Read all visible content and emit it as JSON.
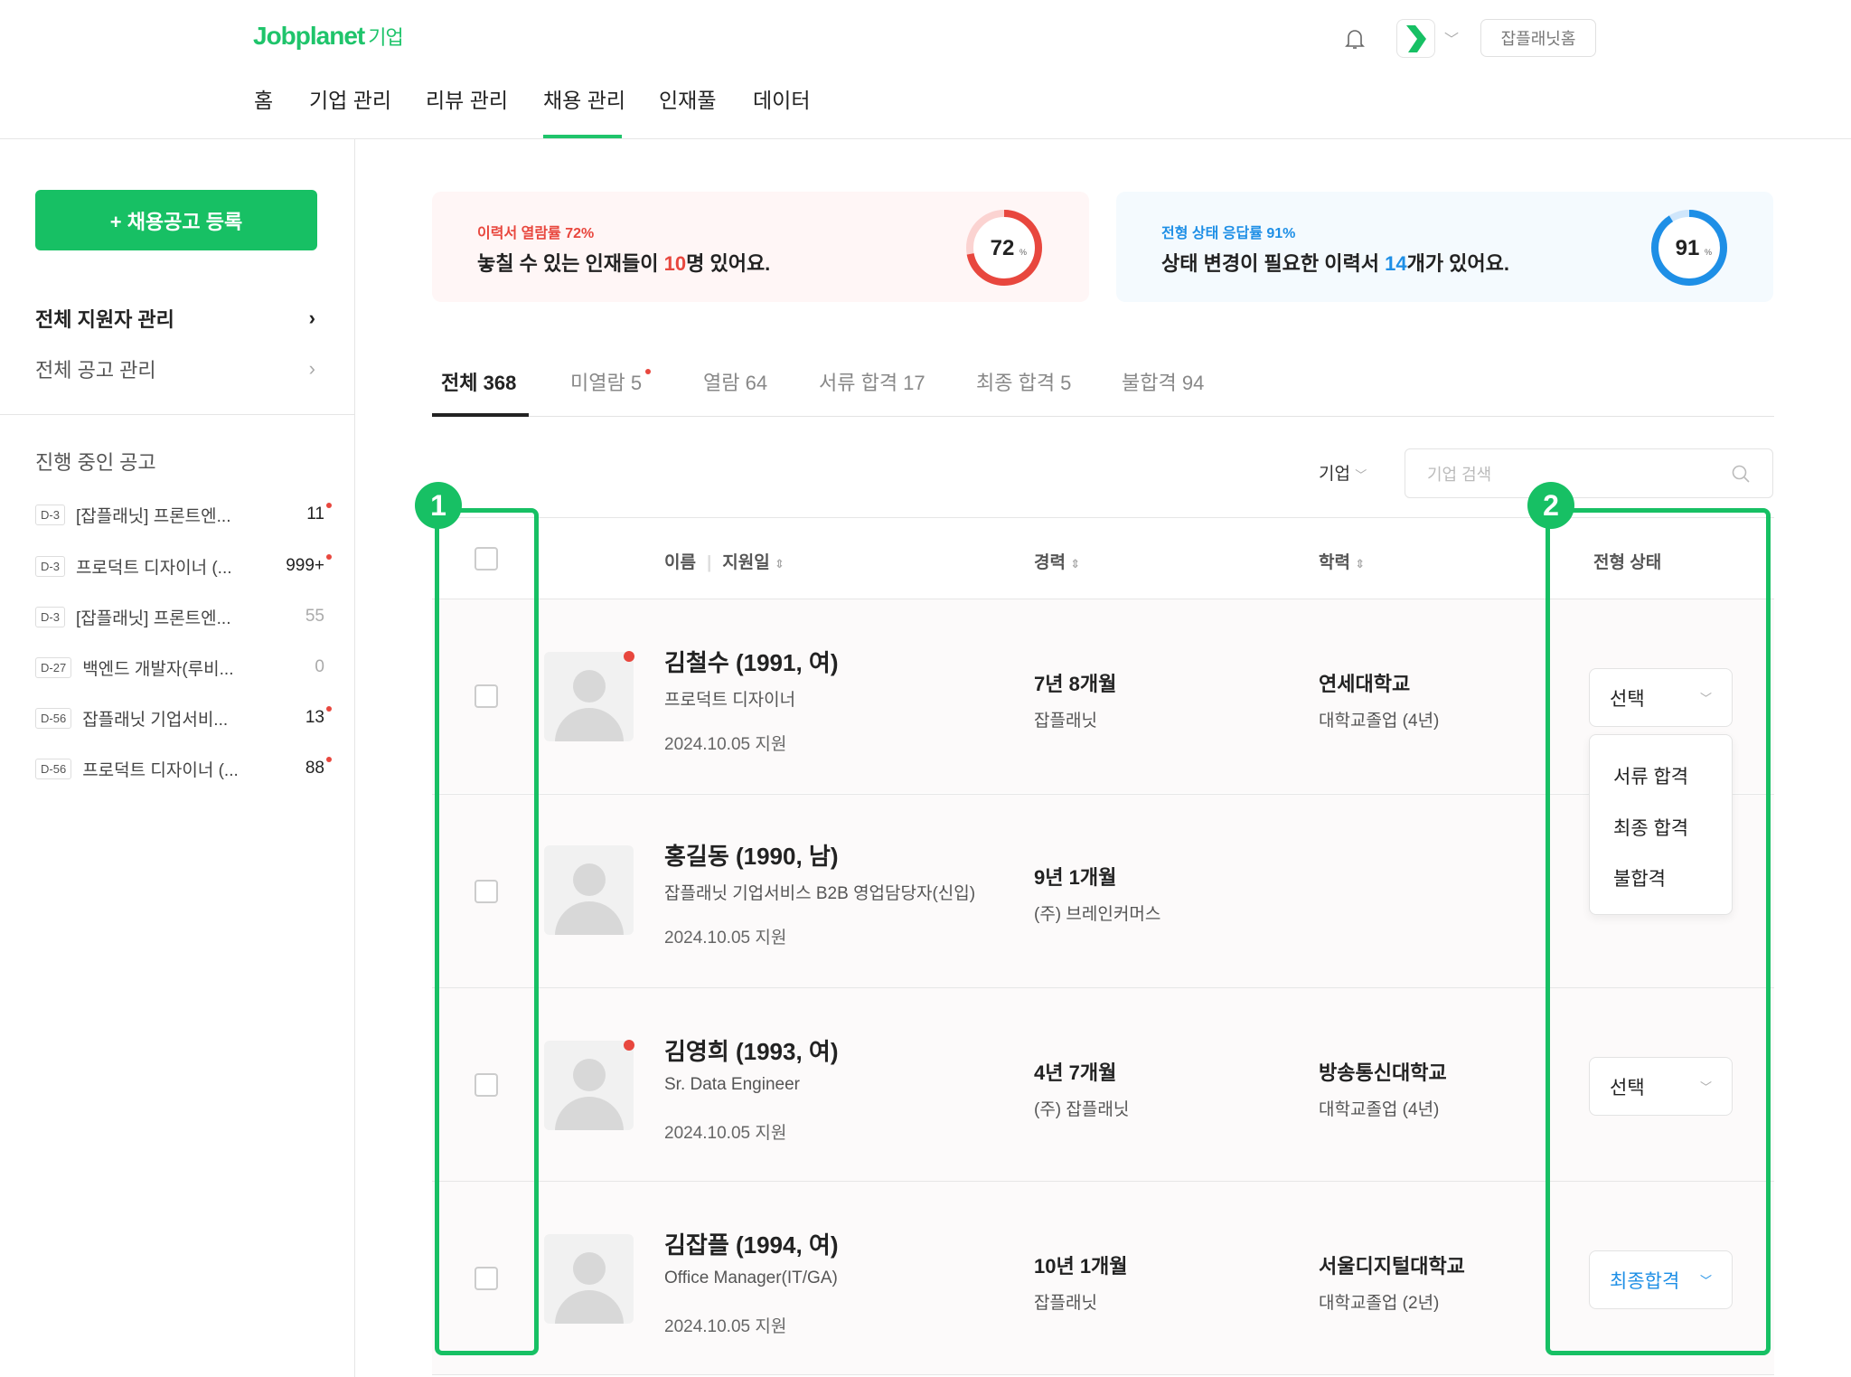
{
  "header": {
    "logo": "Jobplanet",
    "logo_suffix": "기업",
    "nav": [
      "홈",
      "기업 관리",
      "리뷰 관리",
      "채용 관리",
      "인재풀",
      "데이터"
    ],
    "active_nav": "채용 관리",
    "home_button": "잡플래닛홈",
    "brand_color": "#1fc46b"
  },
  "sidebar": {
    "new_post_button": "+ 채용공고 등록",
    "menu": [
      "전체 지원자 관리",
      "전체 공고 관리"
    ],
    "section_title": "진행 중인 공고",
    "jobs": [
      {
        "dday": "D-3",
        "title": "[잡플래닛] 프론트엔...",
        "count": "11",
        "new": true
      },
      {
        "dday": "D-3",
        "title": "프로덕트 디자이너 (...",
        "count": "999+",
        "new": true
      },
      {
        "dday": "D-3",
        "title": "[잡플래닛] 프론트엔...",
        "count": "55",
        "new": false
      },
      {
        "dday": "D-27",
        "title": "백엔드 개발자(루비...",
        "count": "0",
        "new": false
      },
      {
        "dday": "D-56",
        "title": "잡플래닛 기업서비...",
        "count": "13",
        "new": true
      },
      {
        "dday": "D-56",
        "title": "프로덕트 디자이너 (...",
        "count": "88",
        "new": true
      }
    ]
  },
  "cards": [
    {
      "kicker": "이력서 열람률 72%",
      "msg_pre": "놓칠 수 있는 인재들이 ",
      "msg_num": "10",
      "msg_post": "명 있어요.",
      "percent": 72,
      "percent_label": "72",
      "unit": "%",
      "color": "#e8473e"
    },
    {
      "kicker": "전형 상태 응답률 91%",
      "msg_pre": "상태 변경이 필요한 이력서 ",
      "msg_num": "14",
      "msg_post": "개가 있어요.",
      "percent": 91,
      "percent_label": "91",
      "unit": "%",
      "color": "#1e8fe6"
    }
  ],
  "tabs": [
    {
      "label": "전체 368",
      "active": true
    },
    {
      "label": "미열람 5",
      "dot": true
    },
    {
      "label": "열람 64"
    },
    {
      "label": "서류 합격 17"
    },
    {
      "label": "최종 합격 5"
    },
    {
      "label": "불합격 94"
    }
  ],
  "filter": {
    "label": "기업",
    "search_placeholder": "기업 검색"
  },
  "table": {
    "headers": {
      "name": "이름",
      "date": "지원일",
      "career": "경력",
      "education": "학력",
      "status": "전형 상태"
    },
    "rows": [
      {
        "name": "김철수 (1991, 여)",
        "role": "프로덕트 디자이너",
        "date": "2024.10.05 지원",
        "career": "7년 8개월",
        "company": "잡플래닛",
        "school": "연세대학교",
        "degree": "대학교졸업 (4년)",
        "status": "선택",
        "new": true
      },
      {
        "name": "홍길동 (1990, 남)",
        "role": "잡플래닛 기업서비스 B2B 영업담당자(신입)",
        "date": "2024.10.05 지원",
        "career": "9년 1개월",
        "company": "(주) 브레인커머스",
        "school": "",
        "degree": "",
        "status": "",
        "new": false
      },
      {
        "name": "김영희 (1993, 여)",
        "role": "Sr. Data Engineer",
        "date": "2024.10.05 지원",
        "career": "4년 7개월",
        "company": "(주) 잡플래닛",
        "school": "방송통신대학교",
        "degree": "대학교졸업 (4년)",
        "status": "선택",
        "new": true
      },
      {
        "name": "김잡플 (1994, 여)",
        "role": "Office Manager(IT/GA)",
        "date": "2024.10.05 지원",
        "career": "10년 1개월",
        "company": "잡플래닛",
        "school": "서울디지털대학교",
        "degree": "대학교졸업 (2년)",
        "status": "최종합격",
        "new": false
      }
    ],
    "dropdown_options": [
      "서류 합격",
      "최종 합격",
      "불합격"
    ]
  },
  "annotations": [
    "1",
    "2"
  ]
}
